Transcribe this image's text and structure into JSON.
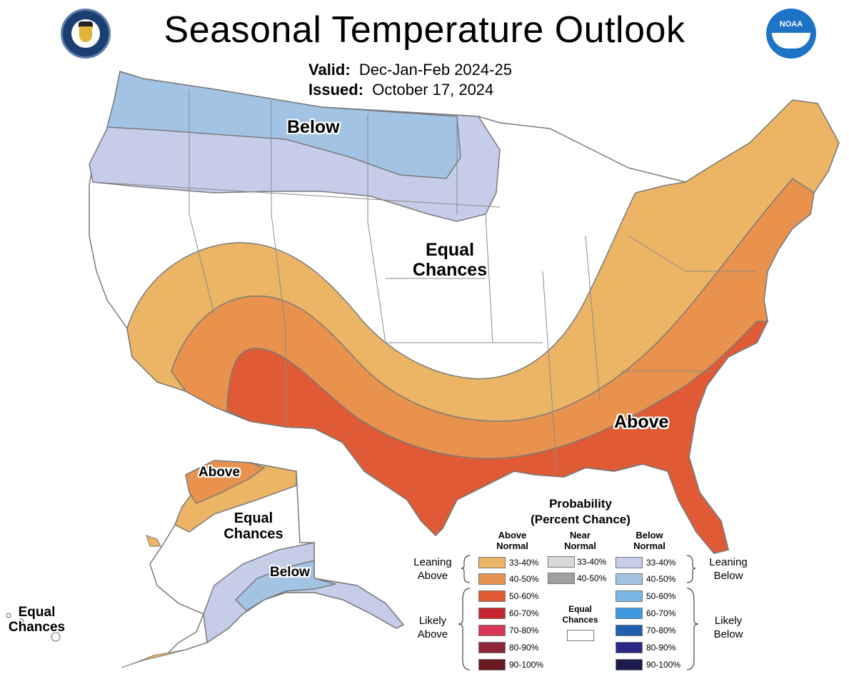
{
  "header": {
    "title": "Seasonal Temperature Outlook",
    "valid_label": "Valid:",
    "valid_value": "Dec-Jan-Feb 2024-25",
    "issued_label": "Issued:",
    "issued_value": "October 17, 2024"
  },
  "logos": {
    "left": "department-of-commerce-seal",
    "right": "noaa-logo",
    "right_text": "NOAA"
  },
  "map_labels": {
    "conus_below": "Below",
    "conus_equal_line1": "Equal",
    "conus_equal_line2": "Chances",
    "conus_above": "Above",
    "ak_above": "Above",
    "ak_equal_line1": "Equal",
    "ak_equal_line2": "Chances",
    "ak_below": "Below",
    "hi_equal_line1": "Equal",
    "hi_equal_line2": "Chances"
  },
  "colors": {
    "above_33_40": "#ecb565",
    "above_40_50": "#e8924e",
    "above_50_60": "#e05b35",
    "above_60_70": "#c8262e",
    "above_70_80": "#d83659",
    "above_80_90": "#8e2439",
    "above_90_100": "#6b1a22",
    "near_33_40": "#d9d9d9",
    "near_40_50": "#a0a0a0",
    "below_33_40": "#c6cde9",
    "below_40_50": "#a3c3e5",
    "below_50_60": "#7ab5e5",
    "below_60_70": "#3b9ae0",
    "below_70_80": "#1f5fae",
    "below_80_90": "#2b2785",
    "below_90_100": "#1b1c4c",
    "equal_chances": "#ffffff",
    "boundary": "#8a8a8a"
  },
  "legend": {
    "title_line1": "Probability",
    "title_line2": "(Percent Chance)",
    "col_above_line1": "Above",
    "col_above_line2": "Normal",
    "col_near_line1": "Near",
    "col_near_line2": "Normal",
    "col_below_line1": "Below",
    "col_below_line2": "Normal",
    "leaning_above_line1": "Leaning",
    "leaning_above_line2": "Above",
    "likely_above_line1": "Likely",
    "likely_above_line2": "Above",
    "leaning_below_line1": "Leaning",
    "leaning_below_line2": "Below",
    "likely_below_line1": "Likely",
    "likely_below_line2": "Below",
    "equal_line1": "Equal",
    "equal_line2": "Chances",
    "above_items": [
      "33-40%",
      "40-50%",
      "50-60%",
      "60-70%",
      "70-80%",
      "80-90%",
      "90-100%"
    ],
    "near_items": [
      "33-40%",
      "40-50%"
    ],
    "below_items": [
      "33-40%",
      "40-50%",
      "50-60%",
      "60-70%",
      "70-80%",
      "80-90%",
      "90-100%"
    ]
  }
}
